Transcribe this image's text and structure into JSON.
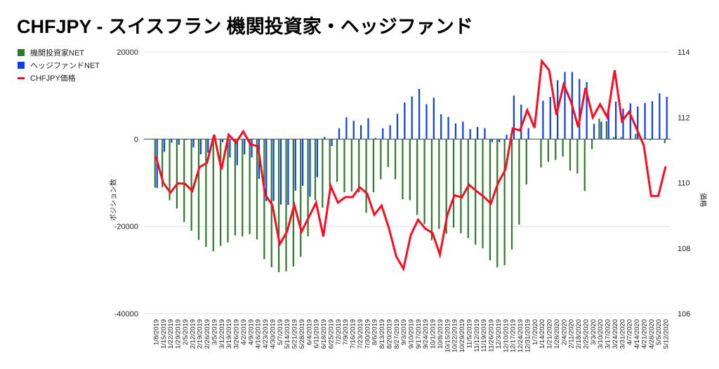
{
  "chart_data": {
    "type": "bar+line",
    "title": "CHFJPY - スイスフラン 機関投資家・ヘッジファンド",
    "ylabel": "ポジション数",
    "y2label": "価格",
    "ylim": [
      -40000,
      20000
    ],
    "y2lim": [
      106,
      114
    ],
    "yticks": [
      "20000",
      "0",
      "-20000",
      "-40000"
    ],
    "y2ticks": [
      "114",
      "112",
      "110",
      "108",
      "106"
    ],
    "grid": true,
    "legend_position": "left",
    "colors": {
      "institutional": "#2a7a2a",
      "hedge": "#0a3cf5",
      "price": "#ff0a1e"
    },
    "categories": [
      "1/8/2019",
      "1/15/2019",
      "1/22/2019",
      "1/29/2019",
      "2/5/2019",
      "2/12/2019",
      "2/19/2019",
      "2/26/2019",
      "3/5/2019",
      "3/12/2019",
      "3/19/2019",
      "3/26/2019",
      "4/2/2019",
      "4/9/2019",
      "4/16/2019",
      "4/23/2019",
      "4/30/2019",
      "5/7/2019",
      "5/14/2019",
      "5/21/2019",
      "5/28/2019",
      "6/4/2019",
      "6/11/2019",
      "6/18/2019",
      "6/25/2019",
      "7/2/2019",
      "7/9/2019",
      "7/16/2019",
      "7/23/2019",
      "7/30/2019",
      "8/6/2019",
      "8/13/2019",
      "8/20/2019",
      "8/27/2019",
      "9/3/2019",
      "9/10/2019",
      "9/17/2019",
      "9/24/2019",
      "10/1/2019",
      "10/8/2019",
      "10/15/2019",
      "10/22/2019",
      "10/29/2019",
      "11/5/2019",
      "11/12/2019",
      "11/19/2019",
      "11/26/2019",
      "12/3/2019",
      "12/10/2019",
      "12/17/2019",
      "12/24/2019",
      "12/31/2019",
      "1/7/2020",
      "1/14/2020",
      "1/21/2020",
      "1/28/2020",
      "2/4/2020",
      "2/11/2020",
      "2/18/2020",
      "2/25/2020",
      "3/3/2020",
      "3/10/2020",
      "3/17/2020",
      "3/24/2020",
      "3/31/2020",
      "4/7/2020",
      "4/14/2020",
      "4/21/2020",
      "4/28/2020",
      "5/5/2020",
      "5/12/2020"
    ],
    "series": [
      {
        "name": "機関投資家NET",
        "axis": "left",
        "kind": "bar",
        "values": [
          -11100,
          -11100,
          -14000,
          -15900,
          -19000,
          -21000,
          -23100,
          -24700,
          -25700,
          -24500,
          -23700,
          -22100,
          -22300,
          -21800,
          -23000,
          -27500,
          -29400,
          -30500,
          -30300,
          -29200,
          -27000,
          -22300,
          -14000,
          -15700,
          -10900,
          -9800,
          -12200,
          -12000,
          -12200,
          -16900,
          -12200,
          -9200,
          -6400,
          -9200,
          -13800,
          -14000,
          -17400,
          -19500,
          -23200,
          -20600,
          -21700,
          -20300,
          -21600,
          -22700,
          -24200,
          -25000,
          -27800,
          -29400,
          -28900,
          -25300,
          -19600,
          -10400,
          0,
          -6500,
          -5200,
          -4800,
          -4000,
          -7200,
          -7900,
          -11900,
          -2300,
          4700,
          4100,
          500,
          500,
          0,
          1200,
          0,
          -300,
          0,
          -900
        ]
      },
      {
        "name": "ヘッジファンドNET",
        "axis": "left",
        "kind": "bar",
        "values": [
          -11200,
          -2900,
          -800,
          -1300,
          -200,
          -1900,
          -3500,
          -3100,
          0,
          -700,
          -4200,
          -6000,
          -3500,
          -4200,
          -9100,
          -14200,
          -14200,
          -15000,
          -15100,
          -11800,
          -10700,
          -13200,
          -8700,
          500,
          -1600,
          2500,
          5000,
          4200,
          3200,
          4800,
          300,
          2500,
          3200,
          5800,
          8400,
          9800,
          11500,
          8000,
          9500,
          5700,
          5100,
          3600,
          4000,
          2300,
          2800,
          2500,
          -700,
          -700,
          1000,
          10000,
          7900,
          2500,
          0,
          8800,
          9700,
          13500,
          15400,
          15400,
          13800,
          13100,
          3500,
          4000,
          7300,
          8600,
          7000,
          8200,
          7500,
          8300,
          8700,
          10500,
          9700
        ]
      },
      {
        "name": "CHFJPY価格",
        "axis": "right",
        "kind": "line",
        "values": [
          110.8,
          110.0,
          109.7,
          109.98,
          109.97,
          109.75,
          110.48,
          110.6,
          111.47,
          110.4,
          111.47,
          111.23,
          111.57,
          111.17,
          111.12,
          109.64,
          109.32,
          108.12,
          108.5,
          109.32,
          108.5,
          108.95,
          109.39,
          108.36,
          109.9,
          109.39,
          109.56,
          109.56,
          109.86,
          109.67,
          109.02,
          109.3,
          108.61,
          107.75,
          107.37,
          108.4,
          108.87,
          108.6,
          108.46,
          107.8,
          109.0,
          109.62,
          109.55,
          109.94,
          109.75,
          109.58,
          109.36,
          110.0,
          110.4,
          111.66,
          111.6,
          112.22,
          111.68,
          113.72,
          113.44,
          112.08,
          113.0,
          112.48,
          111.7,
          112.9,
          112.0,
          112.4,
          112.0,
          113.44,
          111.88,
          112.17,
          111.66,
          111.14,
          109.6,
          109.6,
          110.5
        ]
      }
    ]
  }
}
